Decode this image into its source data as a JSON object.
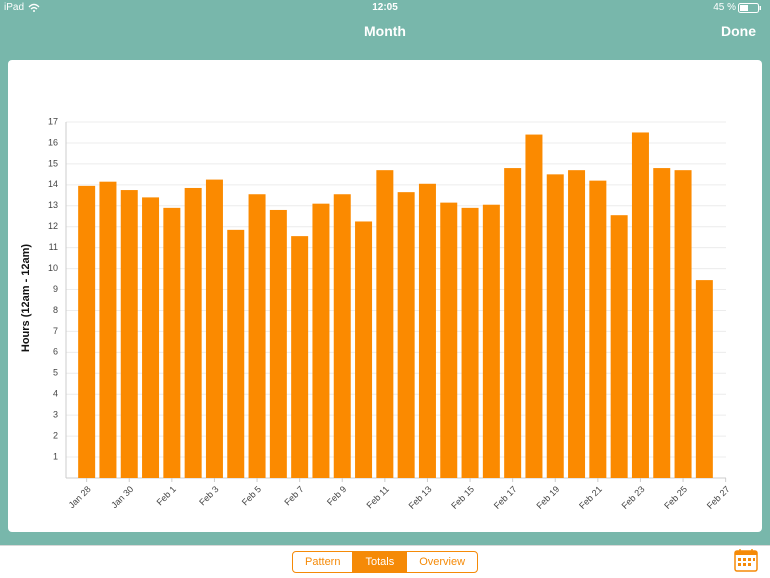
{
  "status_bar": {
    "device": "iPad",
    "time": "12:05",
    "battery": "45 %"
  },
  "nav": {
    "title": "Month",
    "done": "Done"
  },
  "chart_data": {
    "type": "bar",
    "y_label": "Hours (12am - 12am)",
    "categories": [
      "Jan 28",
      null,
      "Jan 30",
      null,
      "Feb 1",
      null,
      "Feb 3",
      null,
      "Feb 5",
      null,
      "Feb 7",
      null,
      "Feb 9",
      null,
      "Feb 11",
      null,
      "Feb 13",
      null,
      "Feb 15",
      null,
      "Feb 17",
      null,
      "Feb 19",
      null,
      "Feb 21",
      null,
      "Feb 23",
      null,
      "Feb 25",
      null,
      "Feb 27"
    ],
    "values": [
      13.95,
      14.15,
      13.75,
      13.4,
      12.9,
      13.85,
      14.25,
      11.85,
      13.55,
      12.8,
      11.55,
      13.1,
      13.55,
      12.25,
      14.7,
      13.65,
      14.05,
      13.15,
      12.9,
      13.05,
      14.8,
      16.4,
      14.5,
      14.7,
      14.2,
      12.55,
      16.5,
      14.8,
      14.7,
      9.45,
      null
    ],
    "color": "#fb8a00",
    "ylim": [
      0,
      17
    ],
    "yticks": [
      1,
      2,
      3,
      4,
      5,
      6,
      7,
      8,
      9,
      10,
      11,
      12,
      13,
      14,
      15,
      16,
      17
    ],
    "grid": true
  },
  "segments": [
    "Pattern",
    "Totals",
    "Overview"
  ]
}
